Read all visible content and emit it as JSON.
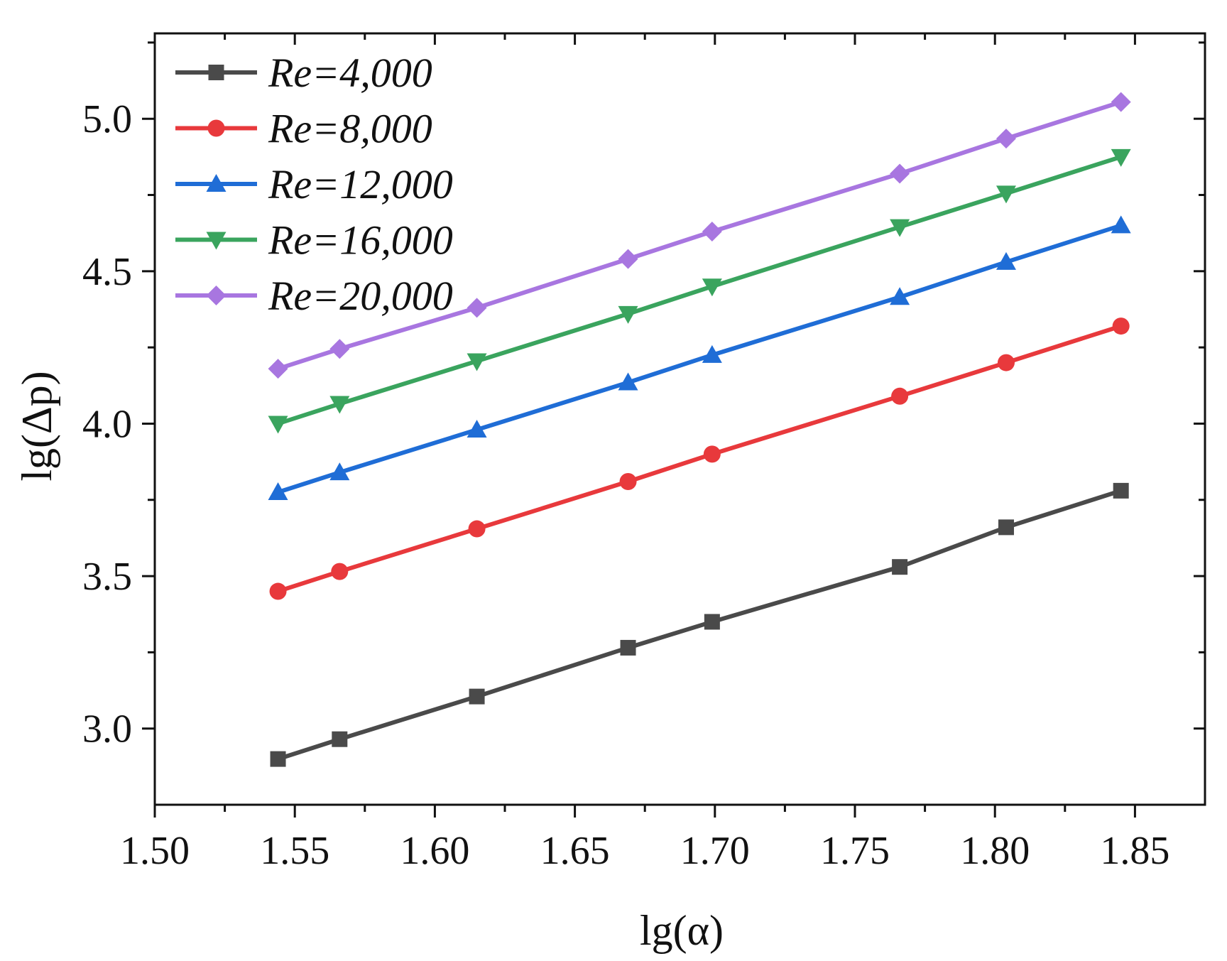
{
  "chart_data": {
    "type": "line",
    "xlabel": "lg(α)",
    "ylabel": "lg(Δp)",
    "xlim": [
      1.5,
      1.875
    ],
    "ylim": [
      2.75,
      5.28
    ],
    "xticks": [
      1.5,
      1.55,
      1.6,
      1.65,
      1.7,
      1.75,
      1.8,
      1.85
    ],
    "xtick_labels": [
      "1.50",
      "1.55",
      "1.60",
      "1.65",
      "1.70",
      "1.75",
      "1.80",
      "1.85"
    ],
    "yticks": [
      3.0,
      3.5,
      4.0,
      4.5,
      5.0
    ],
    "ytick_labels": [
      "3.0",
      "3.5",
      "4.0",
      "4.5",
      "5.0"
    ],
    "legend_position": "top-left",
    "x": [
      1.544,
      1.566,
      1.615,
      1.669,
      1.699,
      1.766,
      1.804,
      1.845
    ],
    "series": [
      {
        "name": "Re=4,000",
        "color": "#4a4a4a",
        "marker": "square",
        "values": [
          2.9,
          2.965,
          3.105,
          3.265,
          3.35,
          3.53,
          3.66,
          3.78
        ]
      },
      {
        "name": "Re=8,000",
        "color": "#e8393c",
        "marker": "circle",
        "values": [
          3.45,
          3.515,
          3.655,
          3.81,
          3.9,
          4.09,
          4.2,
          4.32
        ]
      },
      {
        "name": "Re=12,000",
        "color": "#1f6dd6",
        "marker": "triangle-up",
        "values": [
          3.775,
          3.84,
          3.98,
          4.135,
          4.225,
          4.415,
          4.53,
          4.65
        ]
      },
      {
        "name": "Re=16,000",
        "color": "#3aa45e",
        "marker": "triangle-down",
        "values": [
          4.0,
          4.065,
          4.205,
          4.36,
          4.45,
          4.645,
          4.755,
          4.875
        ]
      },
      {
        "name": "Re=20,000",
        "color": "#a876e0",
        "marker": "diamond",
        "values": [
          4.18,
          4.245,
          4.38,
          4.54,
          4.63,
          4.82,
          4.935,
          5.055
        ]
      }
    ]
  }
}
